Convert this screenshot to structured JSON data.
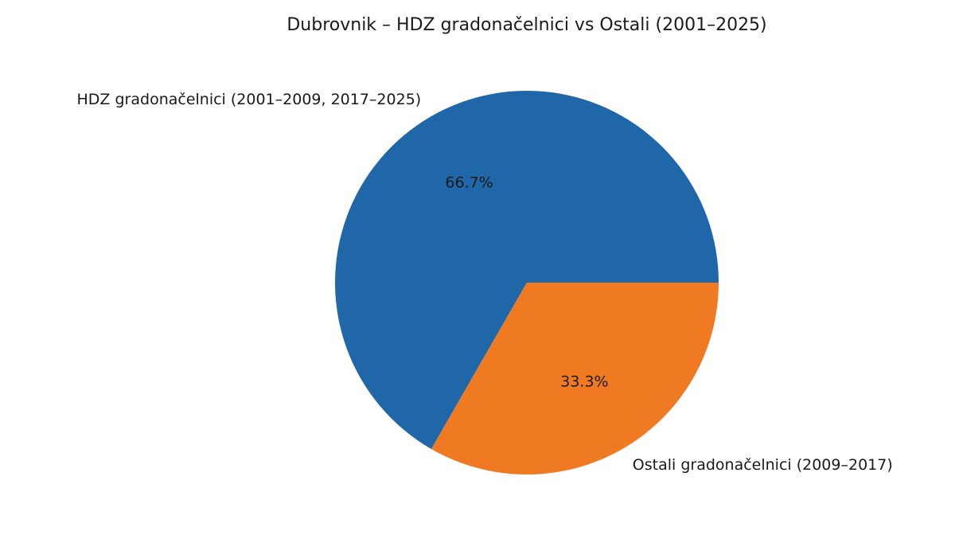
{
  "chart_data": {
    "type": "pie",
    "title": "Dubrovnik – HDZ gradonačelnici vs Ostali (2001–2025)",
    "categories": [
      "HDZ gradonačelnici (2001–2009, 2017–2025)",
      "Ostali gradonačelnici (2009–2017)"
    ],
    "values": [
      66.7,
      33.3
    ],
    "value_labels": [
      "66.7%",
      "33.3%"
    ],
    "colors": [
      "#1f67a8",
      "#f07a22"
    ]
  }
}
